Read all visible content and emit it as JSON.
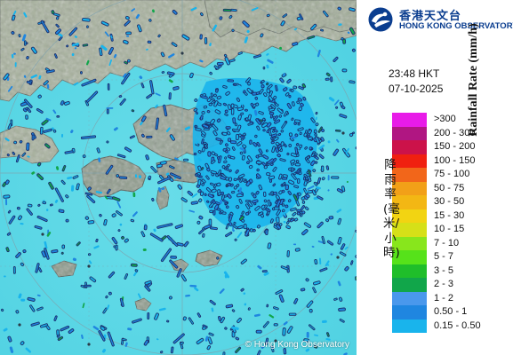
{
  "header": {
    "org_chinese": "香港天文台",
    "org_english": "HONG KONG OBSERVATORY",
    "brand_color": "#0a3d8f"
  },
  "observation": {
    "time": "23:48 HKT",
    "date": "07-10-2025"
  },
  "map": {
    "copyright": "© Hong Kong Observatory",
    "background_color": "#5ad8e6",
    "land_color": "#9aa79a",
    "echo_color_light": "#19b4ec",
    "echo_color_medium": "#1f86e0",
    "echo_color_dark": "#1b2f6c",
    "echo_color_green": "#11a64a",
    "range_rings": true,
    "grid_lines": true
  },
  "legend": {
    "title_en": "Rainfall Rate (mm/h)",
    "title_cn": "降雨率(毫米/小時)",
    "items": [
      {
        "label": ">300",
        "color": "#e81be8"
      },
      {
        "label": "200 - 300",
        "color": "#b01682"
      },
      {
        "label": "150 - 200",
        "color": "#cc124a"
      },
      {
        "label": "100 - 150",
        "color": "#f02010"
      },
      {
        "label": "75 - 100",
        "color": "#f2661a"
      },
      {
        "label": "50 - 75",
        "color": "#f2a018"
      },
      {
        "label": "30 - 50",
        "color": "#f3b714"
      },
      {
        "label": "15 - 30",
        "color": "#f2d412"
      },
      {
        "label": "10 - 15",
        "color": "#d6e018"
      },
      {
        "label": "7 - 10",
        "color": "#88e61c"
      },
      {
        "label": "5 - 7",
        "color": "#56e21a"
      },
      {
        "label": "3 - 5",
        "color": "#1fbe2a"
      },
      {
        "label": "2 - 3",
        "color": "#11a64a"
      },
      {
        "label": "1 - 2",
        "color": "#4a98ec"
      },
      {
        "label": "0.50 - 1",
        "color": "#1f86e0"
      },
      {
        "label": "0.15 - 0.50",
        "color": "#19b4ec"
      }
    ]
  }
}
